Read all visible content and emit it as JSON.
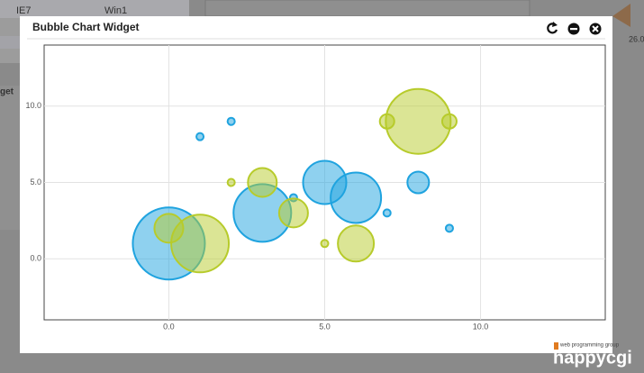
{
  "background": {
    "texts": [
      "IE7",
      "Win1",
      "get",
      "26.0"
    ]
  },
  "widget": {
    "title": "Bubble Chart Widget"
  },
  "chart_data": {
    "type": "bubble",
    "x": [
      0,
      1,
      2,
      3,
      4,
      5,
      6,
      7,
      8,
      9
    ],
    "series": [
      {
        "color": "#1fa3df",
        "values": [
          1,
          8,
          9,
          3,
          4,
          5,
          4,
          3,
          5,
          2
        ],
        "sizes": [
          10,
          1,
          1,
          8,
          1,
          6,
          7,
          1,
          3,
          1
        ]
      },
      {
        "color": "#b7cb2b",
        "values": [
          2,
          1,
          5,
          5,
          3,
          1,
          1,
          9,
          9,
          9
        ],
        "sizes": [
          4,
          8,
          1,
          4,
          4,
          1,
          5,
          2,
          9,
          2
        ]
      }
    ],
    "xlim": [
      -4,
      14
    ],
    "ylim": [
      -4,
      14
    ],
    "xticks": [
      {
        "value": 0,
        "label": "0.0"
      },
      {
        "value": 5,
        "label": "5.0"
      },
      {
        "value": 10,
        "label": "10.0"
      }
    ],
    "yticks": [
      {
        "value": 0,
        "label": "0.0"
      },
      {
        "value": 5,
        "label": "5.0"
      },
      {
        "value": 10,
        "label": "10.0"
      }
    ],
    "grid": true
  },
  "watermark": {
    "tagline": "web programming group",
    "brand": "happycgi"
  }
}
